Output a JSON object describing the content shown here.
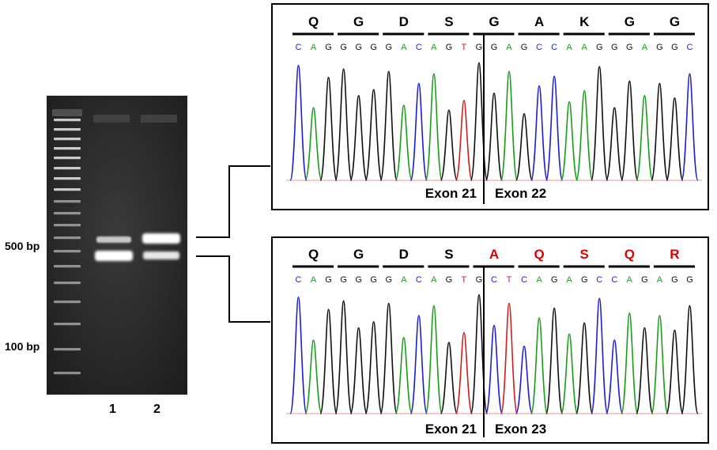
{
  "gel": {
    "size_labels": [
      {
        "text": "500 bp",
        "name": "marker-500bp-label"
      },
      {
        "text": "100 bp",
        "name": "marker-100bp-label"
      }
    ],
    "lanes": [
      "1",
      "2"
    ]
  },
  "panels": [
    {
      "name": "chromatogram-exon21-22",
      "amino_acids": [
        {
          "aa": "Q",
          "color": "#000000"
        },
        {
          "aa": "G",
          "color": "#000000"
        },
        {
          "aa": "D",
          "color": "#000000"
        },
        {
          "aa": "S",
          "color": "#000000"
        },
        {
          "aa": "G",
          "color": "#000000"
        },
        {
          "aa": "A",
          "color": "#000000"
        },
        {
          "aa": "K",
          "color": "#000000"
        },
        {
          "aa": "G",
          "color": "#000000"
        },
        {
          "aa": "G",
          "color": "#000000"
        }
      ],
      "bases": "CAGGGGGACAGTGGAGCCAAGGGAGGC",
      "junction_label_left": "Exon 21",
      "junction_label_right": "Exon 22"
    },
    {
      "name": "chromatogram-exon21-23",
      "amino_acids": [
        {
          "aa": "Q",
          "color": "#000000"
        },
        {
          "aa": "G",
          "color": "#000000"
        },
        {
          "aa": "D",
          "color": "#000000"
        },
        {
          "aa": "S",
          "color": "#000000"
        },
        {
          "aa": "A",
          "color": "#e00000"
        },
        {
          "aa": "Q",
          "color": "#e00000"
        },
        {
          "aa": "S",
          "color": "#e00000"
        },
        {
          "aa": "Q",
          "color": "#e00000"
        },
        {
          "aa": "R",
          "color": "#e00000"
        }
      ],
      "bases": "CAGGGGGACAGTGCTCAGAGCCAGAGG",
      "junction_label_left": "Exon 21",
      "junction_label_right": "Exon 23"
    }
  ],
  "base_colors": {
    "A": "#1a9e1a",
    "C": "#1f1fd0",
    "G": "#111111",
    "T": "#d01f1f"
  }
}
